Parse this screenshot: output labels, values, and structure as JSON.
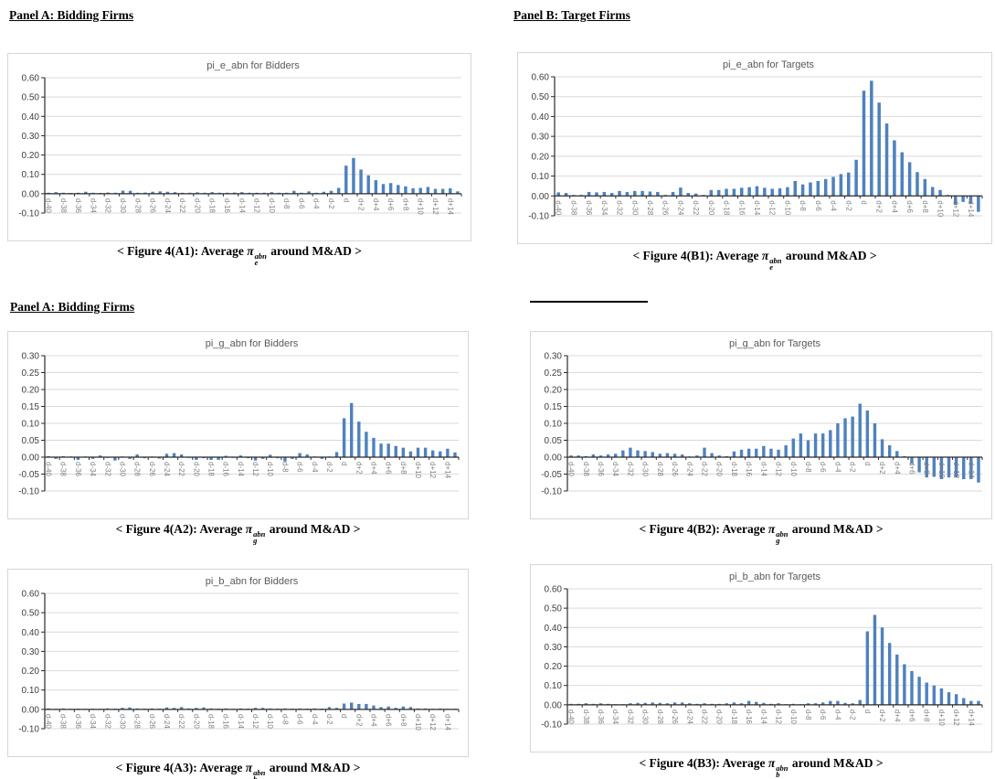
{
  "page": {
    "headings": {
      "panel_a_top": "Panel A: Bidding Firms",
      "panel_b_top": "Panel B: Target Firms",
      "panel_a_mid": "Panel A: Bidding Firms"
    }
  },
  "colors": {
    "bar": "#4f81bd",
    "grid": "#d9d9d9",
    "axis": "#2b2b2b",
    "border": "#d6d6d6",
    "x_tick_label": "#7f7f7f",
    "y_tick_label": "#3f3f3f",
    "title": "#595959"
  },
  "chart_data": [
    {
      "id": "A1",
      "type": "bar",
      "title": "pi_e_abn for Bidders",
      "caption": {
        "prefix": "< Figure 4(A1): Average ",
        "symbol": "π",
        "sup": "abn",
        "sub": "e",
        "suffix": " around M&AD >"
      },
      "ylim": [
        -0.1,
        0.6
      ],
      "ytick_step": 0.1,
      "ytick_labels": [
        "0.60",
        "0.50",
        "0.40",
        "0.30",
        "0.20",
        "0.10",
        "0.00",
        "-0.10"
      ],
      "label_every": 2,
      "grid": true,
      "legend": "none",
      "categories": [
        "d-40",
        "d-39",
        "d-38",
        "d-37",
        "d-36",
        "d-35",
        "d-34",
        "d-33",
        "d-32",
        "d-31",
        "d-30",
        "d-29",
        "d-28",
        "d-27",
        "d-26",
        "d-25",
        "d-24",
        "d-23",
        "d-22",
        "d-21",
        "d-20",
        "d-19",
        "d-18",
        "d-17",
        "d-16",
        "d-15",
        "d-14",
        "d-13",
        "d-12",
        "d-11",
        "d-10",
        "d-9",
        "d-8",
        "d-7",
        "d-6",
        "d-5",
        "d-4",
        "d-3",
        "d-2",
        "d-1",
        "d",
        "d+1",
        "d+2",
        "d+3",
        "d+4",
        "d+5",
        "d+6",
        "d+7",
        "d+8",
        "d+9",
        "d+10",
        "d+11",
        "d+12",
        "d+13",
        "d+14",
        "d+15"
      ],
      "values": [
        0.005,
        0.008,
        0.005,
        0.004,
        0.005,
        0.01,
        0.005,
        0.004,
        0.006,
        0.005,
        0.016,
        0.015,
        0.005,
        0.006,
        0.01,
        0.012,
        0.01,
        0.008,
        0.005,
        0.005,
        0.007,
        0.005,
        0.008,
        0.005,
        0.005,
        0.006,
        0.008,
        0.005,
        0.005,
        0.005,
        0.008,
        0.005,
        0.005,
        0.015,
        0.005,
        0.012,
        0.005,
        0.01,
        0.015,
        0.03,
        0.145,
        0.185,
        0.125,
        0.095,
        0.07,
        0.05,
        0.055,
        0.045,
        0.038,
        0.028,
        0.03,
        0.035,
        0.025,
        0.025,
        0.028,
        0.012
      ]
    },
    {
      "id": "B1",
      "type": "bar",
      "title": "pi_e_abn for Targets",
      "caption": {
        "prefix": "< Figure 4(B1): Average ",
        "symbol": "π",
        "sup": "abn",
        "sub": "e",
        "suffix": " around M&AD >"
      },
      "ylim": [
        -0.1,
        0.6
      ],
      "ytick_step": 0.1,
      "ytick_labels": [
        "0.60",
        "0.50",
        "0.40",
        "0.30",
        "0.20",
        "0.10",
        "0.00",
        "-0.10"
      ],
      "label_every": 2,
      "grid": true,
      "legend": "none",
      "categories": [
        "d-40",
        "d-39",
        "d-38",
        "d-37",
        "d-36",
        "d-35",
        "d-34",
        "d-33",
        "d-32",
        "d-31",
        "d-30",
        "d-29",
        "d-28",
        "d-27",
        "d-26",
        "d-25",
        "d-24",
        "d-23",
        "d-22",
        "d-21",
        "d-20",
        "d-19",
        "d-18",
        "d-17",
        "d-16",
        "d-15",
        "d-14",
        "d-13",
        "d-12",
        "d-11",
        "d-10",
        "d-9",
        "d-8",
        "d-7",
        "d-6",
        "d-5",
        "d-4",
        "d-3",
        "d-2",
        "d-1",
        "d",
        "d+1",
        "d+2",
        "d+3",
        "d+4",
        "d+5",
        "d+6",
        "d+7",
        "d+8",
        "d+9",
        "d+10",
        "d+11",
        "d+12",
        "d+13",
        "d+14",
        "d+15"
      ],
      "values": [
        0.018,
        0.015,
        0.005,
        0.005,
        0.02,
        0.018,
        0.02,
        0.015,
        0.025,
        0.02,
        0.025,
        0.025,
        0.022,
        0.02,
        0.005,
        0.02,
        0.042,
        0.015,
        0.012,
        0.005,
        0.03,
        0.03,
        0.036,
        0.036,
        0.041,
        0.044,
        0.049,
        0.041,
        0.036,
        0.038,
        0.044,
        0.075,
        0.058,
        0.068,
        0.075,
        0.085,
        0.096,
        0.11,
        0.118,
        0.182,
        0.53,
        0.58,
        0.47,
        0.365,
        0.28,
        0.22,
        0.17,
        0.12,
        0.085,
        0.045,
        0.03,
        0.005,
        -0.045,
        -0.03,
        -0.04,
        -0.08
      ]
    },
    {
      "id": "A2",
      "type": "bar",
      "title": "pi_g_abn for Bidders",
      "caption": {
        "prefix": "< Figure 4(A2): Average ",
        "symbol": "π",
        "sup": "abn",
        "sub": "g",
        "suffix": " around M&AD >"
      },
      "ylim": [
        -0.1,
        0.3
      ],
      "ytick_step": 0.05,
      "ytick_labels": [
        "0.30",
        "0.25",
        "0.20",
        "0.15",
        "0.10",
        "0.05",
        "0.00",
        "-0.05",
        "-0.10"
      ],
      "label_every": 2,
      "grid": true,
      "legend": "none",
      "categories": [
        "d-40",
        "d-39",
        "d-38",
        "d-37",
        "d-36",
        "d-35",
        "d-34",
        "d-33",
        "d-32",
        "d-31",
        "d-30",
        "d-29",
        "d-28",
        "d-27",
        "d-26",
        "d-25",
        "d-24",
        "d-23",
        "d-22",
        "d-21",
        "d-20",
        "d-19",
        "d-18",
        "d-17",
        "d-16",
        "d-15",
        "d-14",
        "d-13",
        "d-12",
        "d-11",
        "d-10",
        "d-9",
        "d-8",
        "d-7",
        "d-6",
        "d-5",
        "d-4",
        "d-3",
        "d-2",
        "d-1",
        "d",
        "d+1",
        "d+2",
        "d+3",
        "d+4",
        "d+5",
        "d+6",
        "d+7",
        "d+8",
        "d+9",
        "d+10",
        "d+11",
        "d+12",
        "d+13",
        "d+14",
        "d+15"
      ],
      "values": [
        0.003,
        -0.005,
        0.003,
        0.002,
        -0.008,
        0.002,
        -0.005,
        0.005,
        -0.002,
        -0.01,
        0.002,
        -0.005,
        0.008,
        -0.003,
        0.002,
        -0.004,
        0.01,
        0.012,
        0.008,
        -0.002,
        -0.008,
        -0.003,
        -0.008,
        -0.008,
        0.004,
        -0.002,
        0.005,
        -0.003,
        -0.01,
        -0.005,
        0.007,
        -0.003,
        -0.013,
        -0.005,
        0.012,
        0.008,
        0.002,
        -0.005,
        0.002,
        0.015,
        0.115,
        0.16,
        0.105,
        0.075,
        0.057,
        0.04,
        0.04,
        0.033,
        0.028,
        0.017,
        0.028,
        0.028,
        0.02,
        0.017,
        0.025,
        0.014
      ]
    },
    {
      "id": "B2",
      "type": "bar",
      "title": "pi_g_abn for Targets",
      "caption": {
        "prefix": "< Figure 4(B2): Average ",
        "symbol": "π",
        "sup": "abn",
        "sub": "g",
        "suffix": " around M&AD >"
      },
      "ylim": [
        -0.1,
        0.3
      ],
      "ytick_step": 0.05,
      "ytick_labels": [
        "0.30",
        "0.25",
        "0.20",
        "0.15",
        "0.10",
        "0.05",
        "0.00",
        "-0.05",
        "-0.10"
      ],
      "label_every": 2,
      "grid": true,
      "legend": "none",
      "categories": [
        "d-40",
        "d-39",
        "d-38",
        "d-37",
        "d-36",
        "d-35",
        "d-34",
        "d-33",
        "d-32",
        "d-31",
        "d-30",
        "d-29",
        "d-28",
        "d-27",
        "d-26",
        "d-25",
        "d-24",
        "d-23",
        "d-22",
        "d-21",
        "d-20",
        "d-19",
        "d-18",
        "d-17",
        "d-16",
        "d-15",
        "d-14",
        "d-13",
        "d-12",
        "d-11",
        "d-10",
        "d-9",
        "d-8",
        "d-7",
        "d-6",
        "d-5",
        "d-4",
        "d-3",
        "d-2",
        "d-1",
        "d",
        "d+1",
        "d+2",
        "d+3",
        "d+4",
        "d+5",
        "d+6",
        "d+7",
        "d+8",
        "d+9",
        "d+10",
        "d+11",
        "d+12",
        "d+13",
        "d+14",
        "d+15"
      ],
      "values": [
        0.005,
        0.005,
        0.003,
        0.008,
        0.005,
        0.008,
        0.01,
        0.02,
        0.028,
        0.02,
        0.018,
        0.015,
        0.01,
        0.012,
        0.01,
        0.008,
        0.002,
        0.005,
        0.028,
        0.012,
        0.005,
        0.003,
        0.017,
        0.022,
        0.025,
        0.025,
        0.033,
        0.025,
        0.022,
        0.035,
        0.055,
        0.07,
        0.05,
        0.07,
        0.07,
        0.08,
        0.1,
        0.115,
        0.12,
        0.158,
        0.138,
        0.1,
        0.053,
        0.035,
        0.018,
        0.003,
        -0.02,
        -0.045,
        -0.06,
        -0.058,
        -0.065,
        -0.06,
        -0.06,
        -0.065,
        -0.065,
        -0.075
      ]
    },
    {
      "id": "A3",
      "type": "bar",
      "title": "pi_b_abn for Bidders",
      "caption": {
        "prefix": "< Figure 4(A3): Average ",
        "symbol": "π",
        "sup": "abn",
        "sub": "b",
        "suffix": " around M&AD >"
      },
      "ylim": [
        -0.1,
        0.6
      ],
      "ytick_step": 0.1,
      "ytick_labels": [
        "0.60",
        "0.50",
        "0.40",
        "0.30",
        "0.20",
        "0.10",
        "0.00",
        "-0.10"
      ],
      "label_every": 2,
      "grid": true,
      "legend": "none",
      "categories": [
        "d-40",
        "d-39",
        "d-38",
        "d-37",
        "d-36",
        "d-35",
        "d-34",
        "d-33",
        "d-32",
        "d-31",
        "d-30",
        "d-29",
        "d-28",
        "d-27",
        "d-26",
        "d-25",
        "d-24",
        "d-23",
        "d-22",
        "d-21",
        "d-20",
        "d-19",
        "d-18",
        "d-17",
        "d-16",
        "d-15",
        "d-14",
        "d-13",
        "d-12",
        "d-11",
        "d-10",
        "d-9",
        "d-8",
        "d-7",
        "d-6",
        "d-5",
        "d-4",
        "d-3",
        "d-2",
        "d-1",
        "d",
        "d+1",
        "d+2",
        "d+3",
        "d+4",
        "d+5",
        "d+6",
        "d+7",
        "d+8",
        "d+9",
        "d+10",
        "d+11",
        "d+12",
        "d+13",
        "d+14",
        "d+15"
      ],
      "values": [
        0.005,
        0.003,
        0.005,
        0.003,
        0.004,
        0.003,
        0.004,
        0.003,
        0.005,
        0.004,
        0.008,
        0.01,
        0.005,
        0.004,
        0.005,
        0.004,
        0.01,
        0.008,
        0.012,
        0.005,
        0.008,
        0.01,
        0.005,
        0.004,
        0.005,
        0.003,
        0.005,
        0.004,
        0.008,
        0.008,
        0.005,
        0.004,
        0.005,
        0.004,
        0.005,
        0.004,
        0.005,
        0.004,
        0.012,
        0.008,
        0.03,
        0.035,
        0.028,
        0.028,
        0.02,
        0.012,
        0.015,
        0.008,
        0.015,
        0.012,
        0.005,
        0.005,
        0.003,
        0.005,
        0.003,
        0.003
      ]
    },
    {
      "id": "B3",
      "type": "bar",
      "title": "pi_b_abn for Targets",
      "caption": {
        "prefix": "< Figure 4(B3): Average ",
        "symbol": "π",
        "sup": "abn",
        "sub": "b",
        "suffix": " around M&AD >"
      },
      "ylim": [
        -0.1,
        0.6
      ],
      "ytick_step": 0.1,
      "ytick_labels": [
        "0.60",
        "0.50",
        "0.40",
        "0.30",
        "0.20",
        "0.10",
        "0.00",
        "-0.10"
      ],
      "label_every": 2,
      "grid": true,
      "legend": "none",
      "categories": [
        "d-40",
        "d-39",
        "d-38",
        "d-37",
        "d-36",
        "d-35",
        "d-34",
        "d-33",
        "d-32",
        "d-31",
        "d-30",
        "d-29",
        "d-28",
        "d-27",
        "d-26",
        "d-25",
        "d-24",
        "d-23",
        "d-22",
        "d-21",
        "d-20",
        "d-19",
        "d-18",
        "d-17",
        "d-16",
        "d-15",
        "d-14",
        "d-13",
        "d-12",
        "d-11",
        "d-10",
        "d-9",
        "d-8",
        "d-7",
        "d-6",
        "d-5",
        "d-4",
        "d-3",
        "d-2",
        "d-1",
        "d",
        "d+1",
        "d+2",
        "d+3",
        "d+4",
        "d+5",
        "d+6",
        "d+7",
        "d+8",
        "d+9",
        "d+10",
        "d+11",
        "d+12",
        "d+13",
        "d+14",
        "d+15"
      ],
      "values": [
        0.005,
        0.005,
        0.008,
        0.005,
        0.008,
        0.005,
        0.003,
        0.003,
        0.008,
        0.01,
        0.01,
        0.012,
        0.01,
        0.008,
        0.012,
        0.012,
        0.008,
        0.005,
        0.008,
        0.005,
        0.005,
        0.008,
        0.012,
        0.008,
        0.02,
        0.015,
        0.01,
        0.005,
        0.008,
        0.003,
        0.005,
        0.003,
        0.008,
        0.008,
        0.012,
        0.02,
        0.02,
        0.01,
        0.008,
        0.025,
        0.38,
        0.465,
        0.4,
        0.32,
        0.26,
        0.21,
        0.175,
        0.145,
        0.115,
        0.1,
        0.085,
        0.065,
        0.055,
        0.035,
        0.02,
        0.02
      ]
    }
  ]
}
